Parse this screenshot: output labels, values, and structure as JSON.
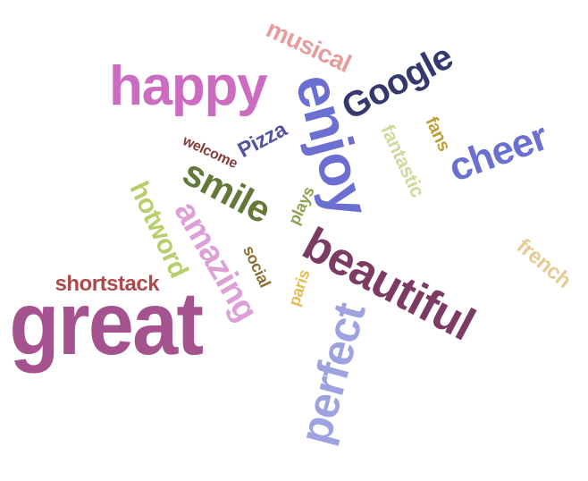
{
  "words": [
    {
      "key": "great",
      "text": "great",
      "color": "#a4538f"
    },
    {
      "key": "happy",
      "text": "happy",
      "color": "#cc6cc1"
    },
    {
      "key": "enjoy",
      "text": "enjoy",
      "color": "#6b6fd1"
    },
    {
      "key": "google",
      "text": "Google",
      "color": "#34386e"
    },
    {
      "key": "musical",
      "text": "musical",
      "color": "#e79c9c"
    },
    {
      "key": "beautiful",
      "text": "beautiful",
      "color": "#7b3b63"
    },
    {
      "key": "perfect",
      "text": "perfect",
      "color": "#9da2e1"
    },
    {
      "key": "cheer",
      "text": "cheer",
      "color": "#6b6fd1"
    },
    {
      "key": "smile",
      "text": "smile",
      "color": "#637939"
    },
    {
      "key": "amazing",
      "text": "amazing",
      "color": "#de9ed6"
    },
    {
      "key": "hotword",
      "text": "hotword",
      "color": "#b5cf6b"
    },
    {
      "key": "shortstack",
      "text": "shortstack",
      "color": "#ad494a"
    },
    {
      "key": "pizza",
      "text": "Pizza",
      "color": "#5254a3"
    },
    {
      "key": "welcome",
      "text": "welcome",
      "color": "#843c39"
    },
    {
      "key": "fantastic",
      "text": "fantastic",
      "color": "#cedb9c"
    },
    {
      "key": "fans",
      "text": "fans",
      "color": "#bd9e39"
    },
    {
      "key": "plays",
      "text": "plays",
      "color": "#8ca252"
    },
    {
      "key": "social",
      "text": "social",
      "color": "#8c6d31"
    },
    {
      "key": "paris",
      "text": "paris",
      "color": "#e7ba52"
    },
    {
      "key": "french",
      "text": "french",
      "color": "#e7cb94"
    }
  ]
}
